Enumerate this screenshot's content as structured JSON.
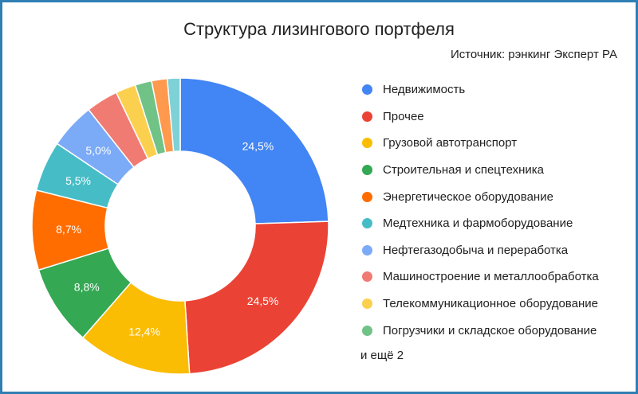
{
  "chart_data": {
    "type": "pie",
    "donut": true,
    "title": "Структура лизингового портфеля",
    "subtitle": "Источник: рэнкинг Эксперт РА",
    "categories": [
      "Недвижимость",
      "Прочее",
      "Грузовой автотранспорт",
      "Строительная и спецтехника",
      "Энергетическое оборудование",
      "Медтехника и фармоборудование",
      "Нефтегазодобыча и переработка",
      "Машиностроение и металлообработка",
      "Телекоммуникационное оборудование",
      "Погрузчики и складское оборудование",
      "",
      ""
    ],
    "values": [
      24.5,
      24.5,
      12.4,
      8.8,
      8.7,
      5.5,
      5.0,
      3.5,
      2.2,
      1.8,
      1.7,
      1.4
    ],
    "labels": [
      "24,5%",
      "24,5%",
      "12,4%",
      "8,8%",
      "8,7%",
      "5,5%",
      "5,0%",
      "",
      "",
      "",
      "",
      ""
    ],
    "colors": [
      "#4285f4",
      "#ea4335",
      "#fbbc04",
      "#34a853",
      "#ff6d01",
      "#46bdc6",
      "#7baaf7",
      "#f07b72",
      "#fcd04f",
      "#71c287",
      "#ff994d",
      "#7ed1d7"
    ],
    "legend_visible_count": 10,
    "legend_more": "и ещё 2",
    "legend_position": "right"
  }
}
